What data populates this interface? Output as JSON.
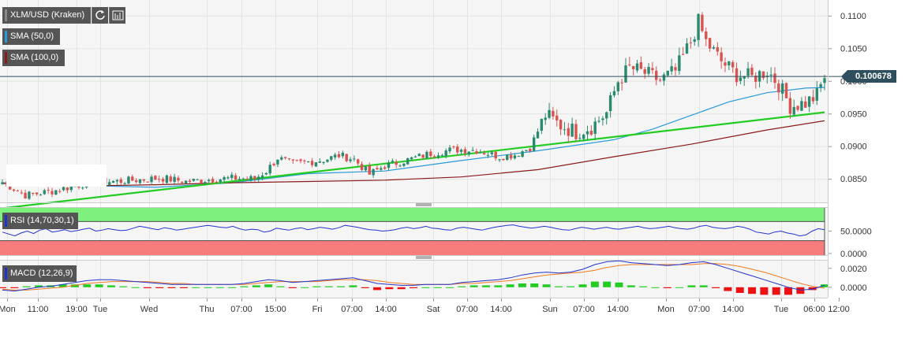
{
  "header": {
    "symbol_label": "XLM/USD (Kraken)",
    "refresh_icon": "refresh-icon",
    "bars_icon": "bar-chart-icon"
  },
  "legends": {
    "sma50": "SMA (50,0)",
    "sma100": "SMA (100,0)",
    "rsi": "RSI (14,70,30,1)",
    "macd": "MACD (12,26,9)"
  },
  "colors": {
    "up": "#2a8a6f",
    "down": "#d9534f",
    "sma50": "#2a9ad8",
    "sma100": "#8b1a1a",
    "trendline": "#22cc22",
    "rsi_line": "#2233cc",
    "rsi_overbought": "#7ef07e",
    "rsi_oversold": "#f77c7c",
    "macd_line": "#2233cc",
    "signal_line": "#f07a20",
    "last_price_line": "#2f4f5f"
  },
  "chart_data": [
    {
      "type": "candlestick",
      "title": "XLM/USD (Kraken)",
      "price_axis_ticks": [
        "0.1100",
        "0.1050",
        "0.1000",
        "0.0950",
        "0.0900",
        "0.0850"
      ],
      "ylim": [
        0.0814,
        0.1124
      ],
      "last_price": "0.100678",
      "time_ticks": [
        "Mon",
        "11:00",
        "19:00",
        "Tue",
        "Wed",
        "Thu",
        "07:00",
        "15:00",
        "Fri",
        "07:00",
        "14:00",
        "Sat",
        "07:00",
        "14:00",
        "Sun",
        "07:00",
        "14:00",
        "Mon",
        "07:00",
        "14:00",
        "Tue",
        "06:00",
        "12:00"
      ],
      "close_anchors": [
        [
          0,
          0.0845
        ],
        [
          6,
          0.0825
        ],
        [
          12,
          0.083
        ],
        [
          18,
          0.0838
        ],
        [
          24,
          0.0846
        ],
        [
          30,
          0.0846
        ],
        [
          36,
          0.0849
        ],
        [
          42,
          0.0851
        ],
        [
          48,
          0.0846
        ],
        [
          54,
          0.0849
        ],
        [
          60,
          0.0851
        ],
        [
          66,
          0.085
        ],
        [
          69,
          0.0862
        ],
        [
          72,
          0.0882
        ],
        [
          76,
          0.0873
        ],
        [
          80,
          0.0876
        ],
        [
          84,
          0.0879
        ],
        [
          88,
          0.0886
        ],
        [
          92,
          0.088
        ],
        [
          96,
          0.0857
        ],
        [
          100,
          0.087
        ],
        [
          106,
          0.0879
        ],
        [
          112,
          0.0889
        ],
        [
          118,
          0.0895
        ],
        [
          124,
          0.0894
        ],
        [
          130,
          0.0884
        ],
        [
          134,
          0.0887
        ],
        [
          138,
          0.0898
        ],
        [
          142,
          0.0948
        ],
        [
          146,
          0.0932
        ],
        [
          150,
          0.0922
        ],
        [
          154,
          0.093
        ],
        [
          158,
          0.0951
        ],
        [
          161,
          0.1
        ],
        [
          164,
          0.102
        ],
        [
          168,
          0.1012
        ],
        [
          172,
          0.1001
        ],
        [
          176,
          0.1015
        ],
        [
          180,
          0.106
        ],
        [
          182,
          0.109
        ],
        [
          184,
          0.106
        ],
        [
          188,
          0.103
        ],
        [
          192,
          0.101
        ],
        [
          196,
          0.1005
        ],
        [
          200,
          0.1016
        ],
        [
          203,
          0.0995
        ],
        [
          206,
          0.0962
        ],
        [
          210,
          0.0966
        ],
        [
          213,
          0.0978
        ],
        [
          215,
          0.1007
        ]
      ],
      "series": [
        {
          "name": "SMA (50,0)",
          "points": [
            [
              0,
              0.0844
            ],
            [
              20,
              0.084
            ],
            [
              40,
              0.0837
            ],
            [
              60,
              0.0844
            ],
            [
              80,
              0.0858
            ],
            [
              100,
              0.0862
            ],
            [
              120,
              0.0878
            ],
            [
              140,
              0.0893
            ],
            [
              160,
              0.091
            ],
            [
              170,
              0.0926
            ],
            [
              180,
              0.0947
            ],
            [
              190,
              0.0968
            ],
            [
              200,
              0.0982
            ],
            [
              210,
              0.0989
            ],
            [
              215,
              0.099
            ]
          ]
        },
        {
          "name": "SMA (100,0)",
          "points": [
            [
              0,
              0.0843
            ],
            [
              20,
              0.0839
            ],
            [
              40,
              0.0841
            ],
            [
              60,
              0.0844
            ],
            [
              80,
              0.0846
            ],
            [
              100,
              0.0848
            ],
            [
              120,
              0.0853
            ],
            [
              140,
              0.0864
            ],
            [
              160,
              0.0884
            ],
            [
              180,
              0.0903
            ],
            [
              200,
              0.0925
            ],
            [
              215,
              0.0939
            ]
          ]
        },
        {
          "name": "trendline",
          "points": [
            [
              0,
              0.0805
            ],
            [
              215,
              0.0952
            ]
          ]
        }
      ]
    },
    {
      "type": "line",
      "title": "RSI (14,70,30,1)",
      "ylim": [
        0,
        100
      ],
      "y_ticks": [
        "50.0000",
        "0.0000"
      ],
      "series": [
        {
          "name": "RSI (14,70,30,1)",
          "values": [
            48,
            44,
            40,
            46,
            50,
            45,
            52,
            55,
            48,
            50,
            53,
            49,
            51,
            54,
            56,
            50,
            52,
            55,
            53,
            51,
            52,
            56,
            60,
            58,
            55,
            53,
            57,
            55,
            52,
            54,
            56,
            58,
            60,
            62,
            60,
            58,
            57,
            60,
            55,
            52,
            54,
            53,
            48,
            50,
            56,
            54,
            52,
            55,
            57,
            53,
            55,
            58,
            56,
            54,
            57,
            62,
            60,
            58,
            55,
            53,
            52,
            50,
            51,
            53,
            56,
            58,
            55,
            57,
            60,
            56,
            55,
            53,
            52,
            56,
            58,
            56,
            54,
            52,
            55,
            58,
            60,
            62,
            63,
            60,
            58,
            56,
            58,
            60,
            58,
            55,
            53,
            52,
            55,
            58,
            56,
            54,
            56,
            58,
            55,
            54,
            56,
            58,
            60,
            57,
            55,
            56,
            58,
            60,
            57,
            55,
            54,
            56,
            60,
            62,
            58,
            56,
            55,
            57,
            60,
            58,
            54,
            48,
            46,
            44,
            48,
            50,
            46,
            44,
            40,
            42,
            50,
            55,
            53
          ]
        }
      ]
    },
    {
      "type": "bar",
      "title": "MACD (12,26,9)",
      "y_ticks": [
        "0.0020",
        "0.0000"
      ],
      "ylim": [
        -0.0011,
        0.0029
      ],
      "series": [
        {
          "name": "MACD (12,26,9)",
          "values": [
            -0.0003,
            -0.0004,
            -0.0002,
            0.0,
            0.0001,
            0.0003,
            0.0005,
            0.0007,
            0.0008,
            0.0008,
            0.0007,
            0.0006,
            0.0005,
            0.0004,
            0.0003,
            0.0003,
            0.0003,
            0.0003,
            0.0003,
            0.0003,
            0.0004,
            0.0006,
            0.0008,
            0.0007,
            0.0005,
            0.0006,
            0.0007,
            0.0008,
            0.0009,
            0.001,
            0.0007,
            0.0004,
            0.0003,
            0.0002,
            0.0002,
            0.0003,
            0.0003,
            0.0003,
            0.0005,
            0.0006,
            0.0007,
            0.0008,
            0.001,
            0.0013,
            0.0015,
            0.0016,
            0.0015,
            0.0016,
            0.0019,
            0.0024,
            0.0027,
            0.0028,
            0.0026,
            0.0025,
            0.0024,
            0.0023,
            0.0024,
            0.0026,
            0.0027,
            0.0024,
            0.002,
            0.0016,
            0.0012,
            0.0008,
            0.0004,
            0.0,
            -0.0003,
            -0.0002,
            0.0002
          ]
        },
        {
          "name": "Signal",
          "values": [
            -0.0002,
            -0.0003,
            -0.0003,
            -0.0002,
            -0.0001,
            0.0,
            0.0002,
            0.0004,
            0.0005,
            0.0006,
            0.0006,
            0.0006,
            0.0006,
            0.0005,
            0.0004,
            0.0004,
            0.0003,
            0.0003,
            0.0003,
            0.0003,
            0.0003,
            0.0004,
            0.0005,
            0.0006,
            0.0006,
            0.0006,
            0.0006,
            0.0007,
            0.0008,
            0.0008,
            0.0008,
            0.0007,
            0.0005,
            0.0004,
            0.0003,
            0.0003,
            0.0003,
            0.0003,
            0.0004,
            0.0004,
            0.0005,
            0.0006,
            0.0007,
            0.0009,
            0.0011,
            0.0013,
            0.0014,
            0.0015,
            0.0016,
            0.0018,
            0.0021,
            0.0023,
            0.0024,
            0.0024,
            0.0024,
            0.0024,
            0.0024,
            0.0024,
            0.0025,
            0.0025,
            0.0024,
            0.0022,
            0.0019,
            0.0016,
            0.0012,
            0.0008,
            0.0004,
            0.0001,
            -0.0001
          ]
        }
      ]
    }
  ]
}
